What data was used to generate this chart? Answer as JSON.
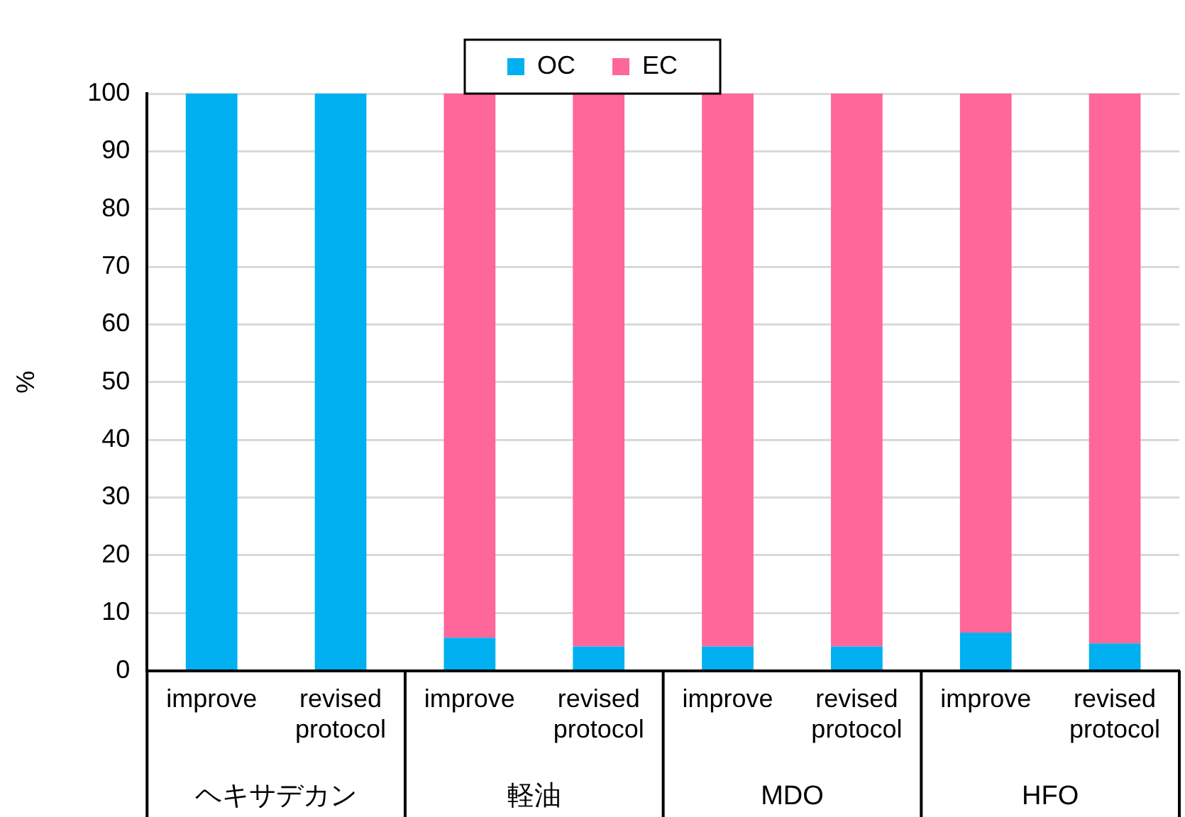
{
  "chart_data": {
    "type": "bar",
    "stacked": true,
    "categories": [
      "improve",
      "revised protocol",
      "improve",
      "revised protocol",
      "improve",
      "revised protocol",
      "improve",
      "revised protocol"
    ],
    "series": [
      {
        "name": "OC",
        "color": "#00b0f0",
        "values": [
          100,
          100,
          5.7,
          4.2,
          4.2,
          4.2,
          6.6,
          4.7
        ]
      },
      {
        "name": "EC",
        "color": "#ff6699",
        "values": [
          0,
          0,
          94.3,
          95.8,
          95.8,
          95.8,
          93.4,
          95.3
        ]
      }
    ],
    "annotations": [
      "ヘキサデカン",
      "軽油",
      "MDO",
      "HFO"
    ],
    "ylabel": "%",
    "ylim": [
      0,
      100
    ],
    "yticks": [
      0,
      10,
      20,
      30,
      40,
      50,
      60,
      70,
      80,
      90,
      100
    ],
    "grid": "y",
    "legend": "top left"
  }
}
